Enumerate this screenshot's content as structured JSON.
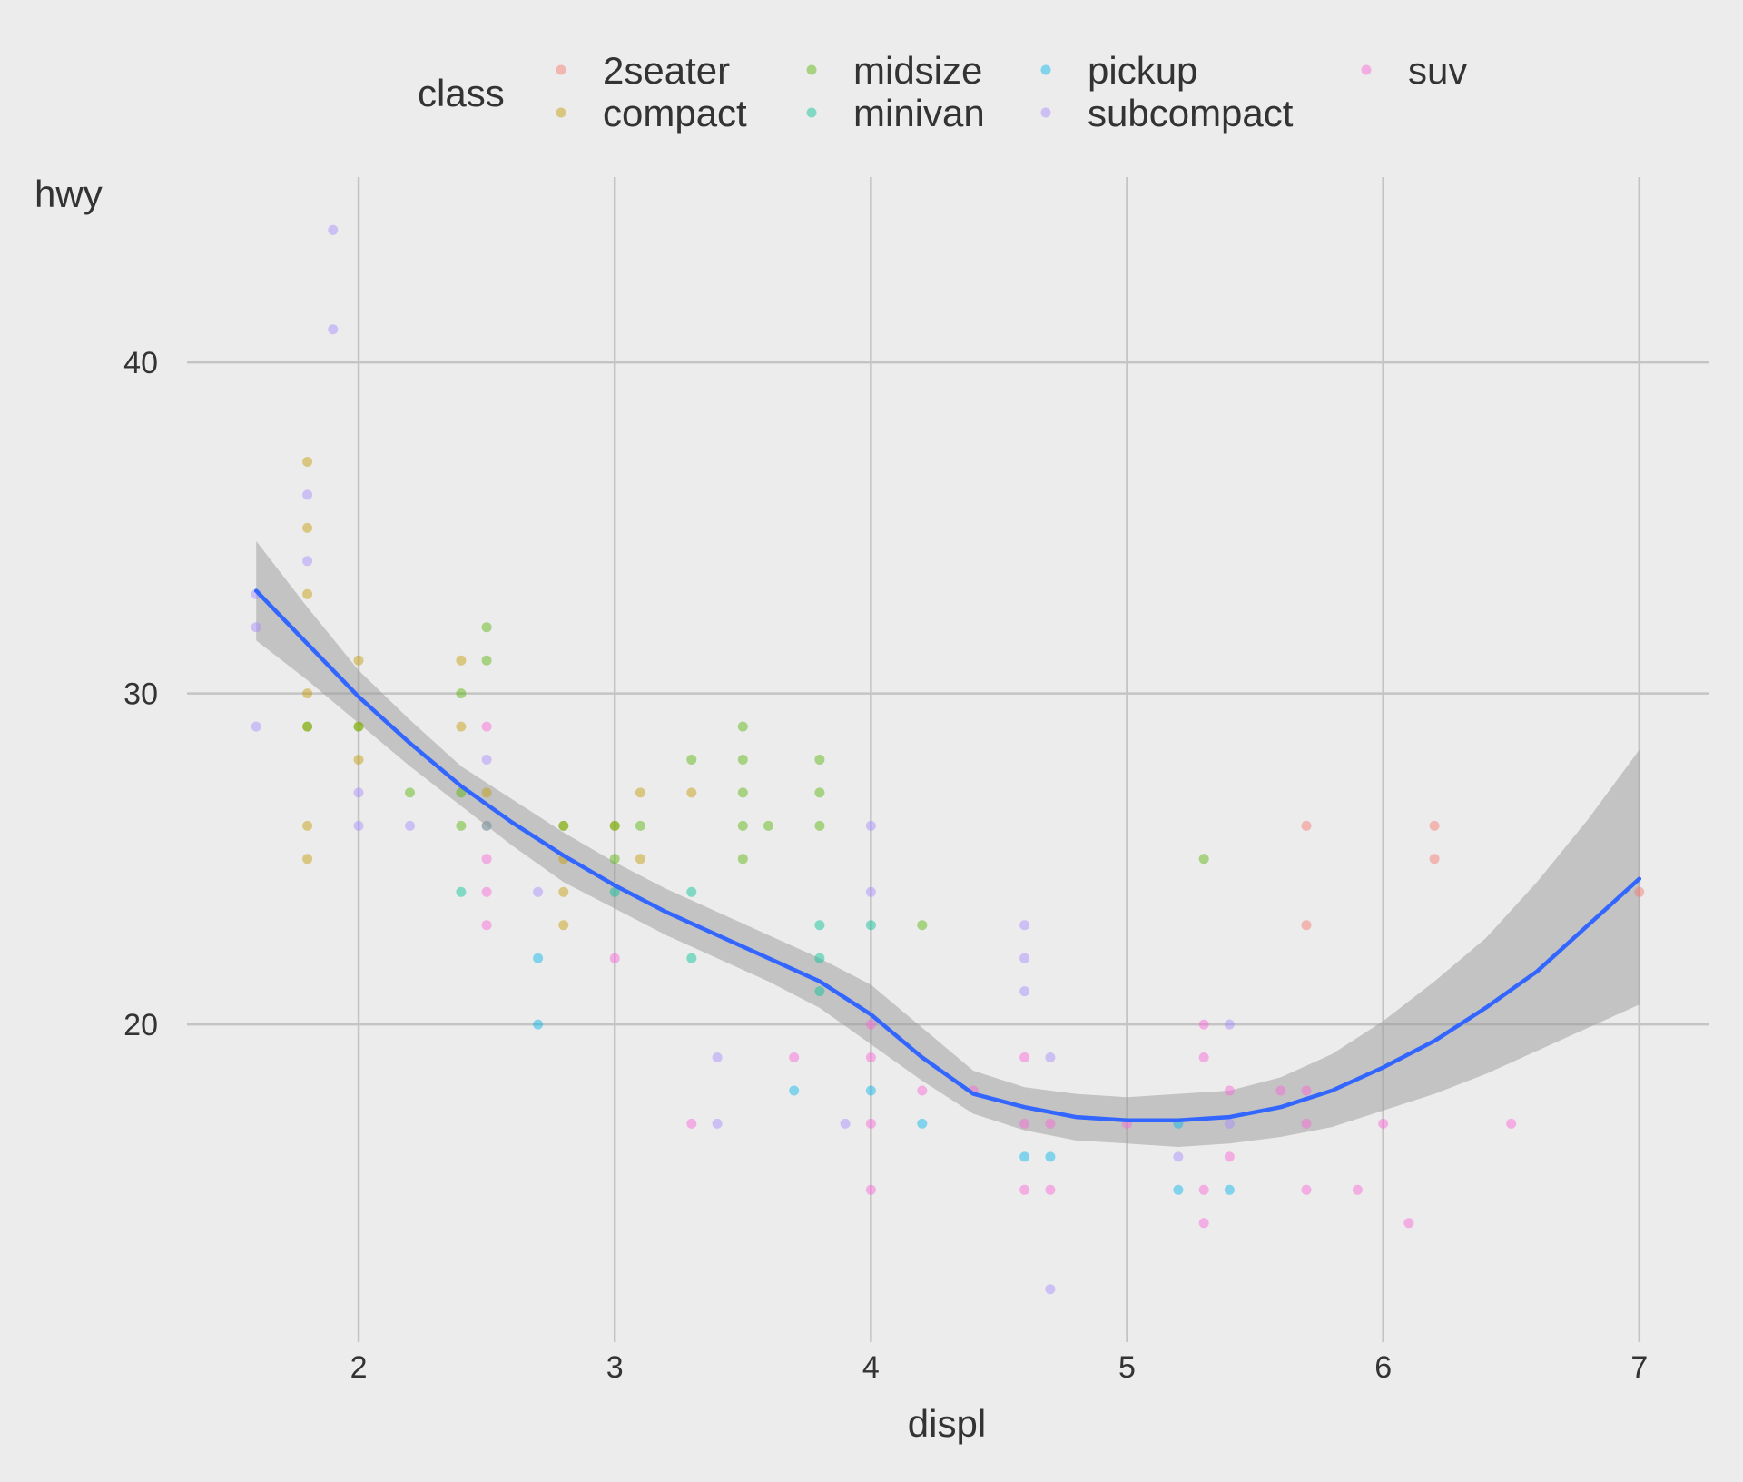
{
  "chart_data": {
    "type": "scatter",
    "title": "",
    "xlabel": "displ",
    "ylabel": "hwy",
    "xlim": [
      1.33,
      7.27
    ],
    "ylim": [
      10.4,
      45.6
    ],
    "xticks": [
      2,
      3,
      4,
      5,
      6,
      7
    ],
    "yticks": [
      20,
      30,
      40
    ],
    "grid": true,
    "legend": {
      "title": "class",
      "position": "top",
      "entries": [
        "2seater",
        "compact",
        "midsize",
        "minivan",
        "pickup",
        "subcompact",
        "suv"
      ]
    },
    "colors": {
      "2seater": "#F8766D",
      "compact": "#C49A00",
      "midsize": "#53B400",
      "minivan": "#00C094",
      "pickup": "#00B6EB",
      "subcompact": "#A58AFF",
      "suv": "#FB61D7",
      "smooth_line": "#3366FF",
      "smooth_band": "#999999"
    },
    "series": [
      {
        "name": "2seater",
        "points": [
          [
            5.7,
            26
          ],
          [
            5.7,
            23
          ],
          [
            6.2,
            26
          ],
          [
            6.2,
            25
          ],
          [
            7.0,
            24
          ]
        ]
      },
      {
        "name": "compact",
        "points": [
          [
            1.8,
            37
          ],
          [
            1.8,
            35
          ],
          [
            1.8,
            33
          ],
          [
            1.8,
            30
          ],
          [
            1.8,
            29
          ],
          [
            1.8,
            26
          ],
          [
            1.8,
            25
          ],
          [
            2.0,
            31
          ],
          [
            2.0,
            29
          ],
          [
            2.0,
            28
          ],
          [
            2.4,
            31
          ],
          [
            2.4,
            29
          ],
          [
            2.5,
            27
          ],
          [
            2.8,
            26
          ],
          [
            2.8,
            25
          ],
          [
            2.8,
            24
          ],
          [
            2.8,
            23
          ],
          [
            3.0,
            26
          ],
          [
            3.1,
            27
          ],
          [
            3.1,
            25
          ],
          [
            3.3,
            27
          ]
        ]
      },
      {
        "name": "midsize",
        "points": [
          [
            1.8,
            29
          ],
          [
            2.0,
            29
          ],
          [
            2.2,
            27
          ],
          [
            2.4,
            30
          ],
          [
            2.4,
            27
          ],
          [
            2.4,
            26
          ],
          [
            2.5,
            32
          ],
          [
            2.5,
            31
          ],
          [
            2.5,
            26
          ],
          [
            2.8,
            26
          ],
          [
            3.0,
            26
          ],
          [
            3.0,
            25
          ],
          [
            3.1,
            26
          ],
          [
            3.3,
            28
          ],
          [
            3.5,
            29
          ],
          [
            3.5,
            28
          ],
          [
            3.5,
            27
          ],
          [
            3.5,
            26
          ],
          [
            3.5,
            25
          ],
          [
            3.6,
            26
          ],
          [
            3.8,
            28
          ],
          [
            3.8,
            27
          ],
          [
            3.8,
            26
          ],
          [
            4.2,
            23
          ],
          [
            5.3,
            25
          ]
        ]
      },
      {
        "name": "minivan",
        "points": [
          [
            2.4,
            24
          ],
          [
            3.0,
            24
          ],
          [
            3.3,
            24
          ],
          [
            3.3,
            22
          ],
          [
            3.8,
            23
          ],
          [
            3.8,
            22
          ],
          [
            3.8,
            21
          ],
          [
            4.0,
            23
          ]
        ]
      },
      {
        "name": "pickup",
        "points": [
          [
            2.7,
            22
          ],
          [
            2.7,
            20
          ],
          [
            3.7,
            18
          ],
          [
            4.0,
            18
          ],
          [
            4.2,
            17
          ],
          [
            4.6,
            16
          ],
          [
            4.7,
            16
          ],
          [
            5.2,
            17
          ],
          [
            5.2,
            15
          ],
          [
            5.4,
            15
          ]
        ]
      },
      {
        "name": "subcompact",
        "points": [
          [
            1.6,
            33
          ],
          [
            1.6,
            32
          ],
          [
            1.6,
            29
          ],
          [
            1.8,
            36
          ],
          [
            1.8,
            34
          ],
          [
            1.9,
            44
          ],
          [
            1.9,
            41
          ],
          [
            2.0,
            27
          ],
          [
            2.0,
            26
          ],
          [
            2.2,
            26
          ],
          [
            2.5,
            28
          ],
          [
            2.5,
            26
          ],
          [
            2.7,
            24
          ],
          [
            3.4,
            19
          ],
          [
            3.4,
            17
          ],
          [
            3.9,
            17
          ],
          [
            4.0,
            26
          ],
          [
            4.0,
            24
          ],
          [
            4.6,
            23
          ],
          [
            4.6,
            22
          ],
          [
            4.6,
            21
          ],
          [
            4.7,
            19
          ],
          [
            4.7,
            12
          ],
          [
            5.2,
            16
          ],
          [
            5.4,
            20
          ],
          [
            5.4,
            17
          ]
        ]
      },
      {
        "name": "suv",
        "points": [
          [
            2.5,
            29
          ],
          [
            2.5,
            25
          ],
          [
            2.5,
            24
          ],
          [
            2.5,
            23
          ],
          [
            3.0,
            22
          ],
          [
            3.3,
            17
          ],
          [
            3.7,
            19
          ],
          [
            4.0,
            20
          ],
          [
            4.0,
            19
          ],
          [
            4.0,
            17
          ],
          [
            4.0,
            15
          ],
          [
            4.2,
            18
          ],
          [
            4.4,
            18
          ],
          [
            4.6,
            19
          ],
          [
            4.6,
            17
          ],
          [
            4.6,
            15
          ],
          [
            4.7,
            17
          ],
          [
            4.7,
            15
          ],
          [
            5.0,
            17
          ],
          [
            5.3,
            20
          ],
          [
            5.3,
            19
          ],
          [
            5.3,
            15
          ],
          [
            5.3,
            14
          ],
          [
            5.4,
            18
          ],
          [
            5.4,
            16
          ],
          [
            5.6,
            18
          ],
          [
            5.7,
            18
          ],
          [
            5.7,
            17
          ],
          [
            5.7,
            15
          ],
          [
            5.9,
            15
          ],
          [
            6.0,
            17
          ],
          [
            6.1,
            14
          ],
          [
            6.5,
            17
          ]
        ]
      }
    ],
    "smooth": {
      "x": [
        1.6,
        1.8,
        2.0,
        2.2,
        2.4,
        2.6,
        2.8,
        3.0,
        3.2,
        3.4,
        3.6,
        3.8,
        4.0,
        4.2,
        4.4,
        4.6,
        4.8,
        5.0,
        5.2,
        5.4,
        5.6,
        5.8,
        6.0,
        6.2,
        6.4,
        6.6,
        6.8,
        7.0
      ],
      "y": [
        33.1,
        31.5,
        29.9,
        28.5,
        27.2,
        26.1,
        25.1,
        24.2,
        23.4,
        22.7,
        22.0,
        21.3,
        20.3,
        19.0,
        17.9,
        17.5,
        17.2,
        17.1,
        17.1,
        17.2,
        17.5,
        18.0,
        18.7,
        19.5,
        20.5,
        21.6,
        23.0,
        24.4
      ],
      "lower": [
        31.6,
        30.4,
        29.1,
        27.8,
        26.6,
        25.4,
        24.3,
        23.5,
        22.7,
        22.0,
        21.3,
        20.5,
        19.4,
        18.3,
        17.3,
        16.8,
        16.5,
        16.4,
        16.3,
        16.4,
        16.6,
        16.9,
        17.4,
        17.9,
        18.5,
        19.2,
        19.9,
        20.6
      ],
      "upper": [
        34.6,
        32.6,
        30.7,
        29.2,
        27.8,
        26.8,
        25.8,
        24.9,
        24.1,
        23.4,
        22.7,
        22.0,
        21.2,
        19.9,
        18.6,
        18.1,
        17.9,
        17.8,
        17.9,
        18.0,
        18.4,
        19.1,
        20.1,
        21.3,
        22.6,
        24.3,
        26.2,
        28.3
      ]
    }
  }
}
